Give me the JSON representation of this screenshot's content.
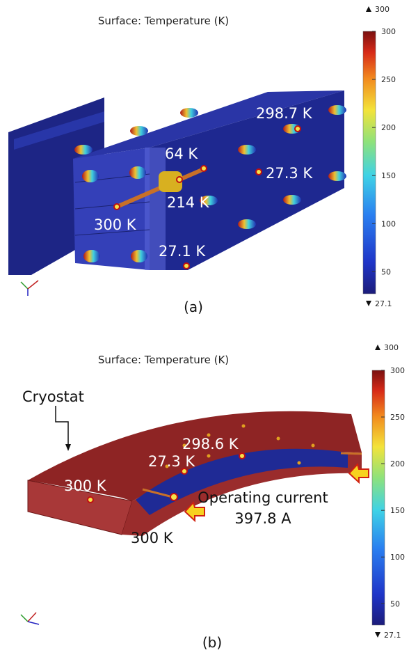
{
  "panels": [
    {
      "title": "Surface: Temperature (K)",
      "colorbar": {
        "max": 300,
        "min": 27.1,
        "ticks": [
          300,
          250,
          200,
          150,
          100,
          50
        ]
      },
      "annotations": [
        "298.7 K",
        "64 K",
        "27.3 K",
        "214 K",
        "300 K",
        "27.1 K"
      ],
      "caption": "(a)"
    },
    {
      "title": "Surface: Temperature (K)",
      "colorbar": {
        "max": 300,
        "min": 27.1,
        "ticks": [
          300,
          250,
          200,
          150,
          100,
          50
        ]
      },
      "annotations": [
        "Cryostat",
        "298.6 K",
        "27.3 K",
        "300 K",
        "300 K",
        "Operating current",
        "397.8 A"
      ],
      "caption": "(b)"
    }
  ]
}
